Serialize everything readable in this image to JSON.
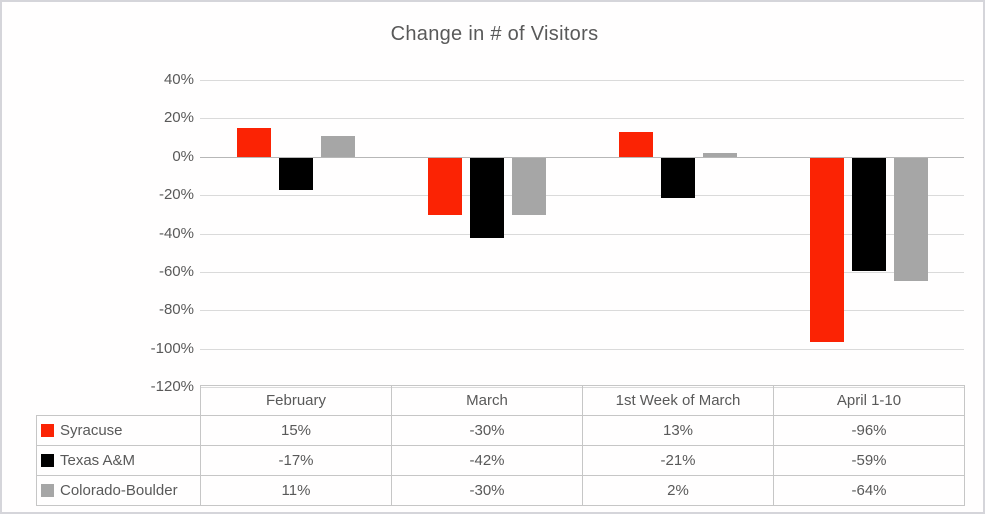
{
  "frame": {
    "background": "#fffefe",
    "border_color": "#d5d5da"
  },
  "chart": {
    "title": "Change in # of Visitors",
    "title_color": "#595959",
    "text_color": "#595959",
    "gridline_color": "#dadada",
    "zero_line_color": "#b7b7b7",
    "table_border_color": "#c6c6c6",
    "y_tick_labels": [
      "40%",
      "20%",
      "0%",
      "-20%",
      "-40%",
      "-60%",
      "-80%",
      "-100%",
      "-120%"
    ]
  },
  "chart_data": {
    "type": "bar",
    "title": "Change in # of Visitors",
    "categories": [
      "February",
      "March",
      "1st Week of March",
      "April 1-10"
    ],
    "series": [
      {
        "name": "Syracuse",
        "color": "#fb2304",
        "values": [
          15,
          -30,
          13,
          -96
        ]
      },
      {
        "name": "Texas A&M",
        "color": "#000000",
        "values": [
          -17,
          -42,
          -21,
          -59
        ]
      },
      {
        "name": "Colorado-Boulder",
        "color": "#a6a6a6",
        "values": [
          11,
          -30,
          2,
          -64
        ]
      }
    ],
    "ylabel": "",
    "xlabel": "",
    "ylim": [
      -120,
      40
    ],
    "y_tick_step": 20,
    "value_format": "percent",
    "grid": true,
    "legend_position": "data-table-left",
    "data_table_values": [
      [
        "15%",
        "-30%",
        "13%",
        "-96%"
      ],
      [
        "-17%",
        "-42%",
        "-21%",
        "-59%"
      ],
      [
        "11%",
        "-30%",
        "2%",
        "-64%"
      ]
    ]
  }
}
